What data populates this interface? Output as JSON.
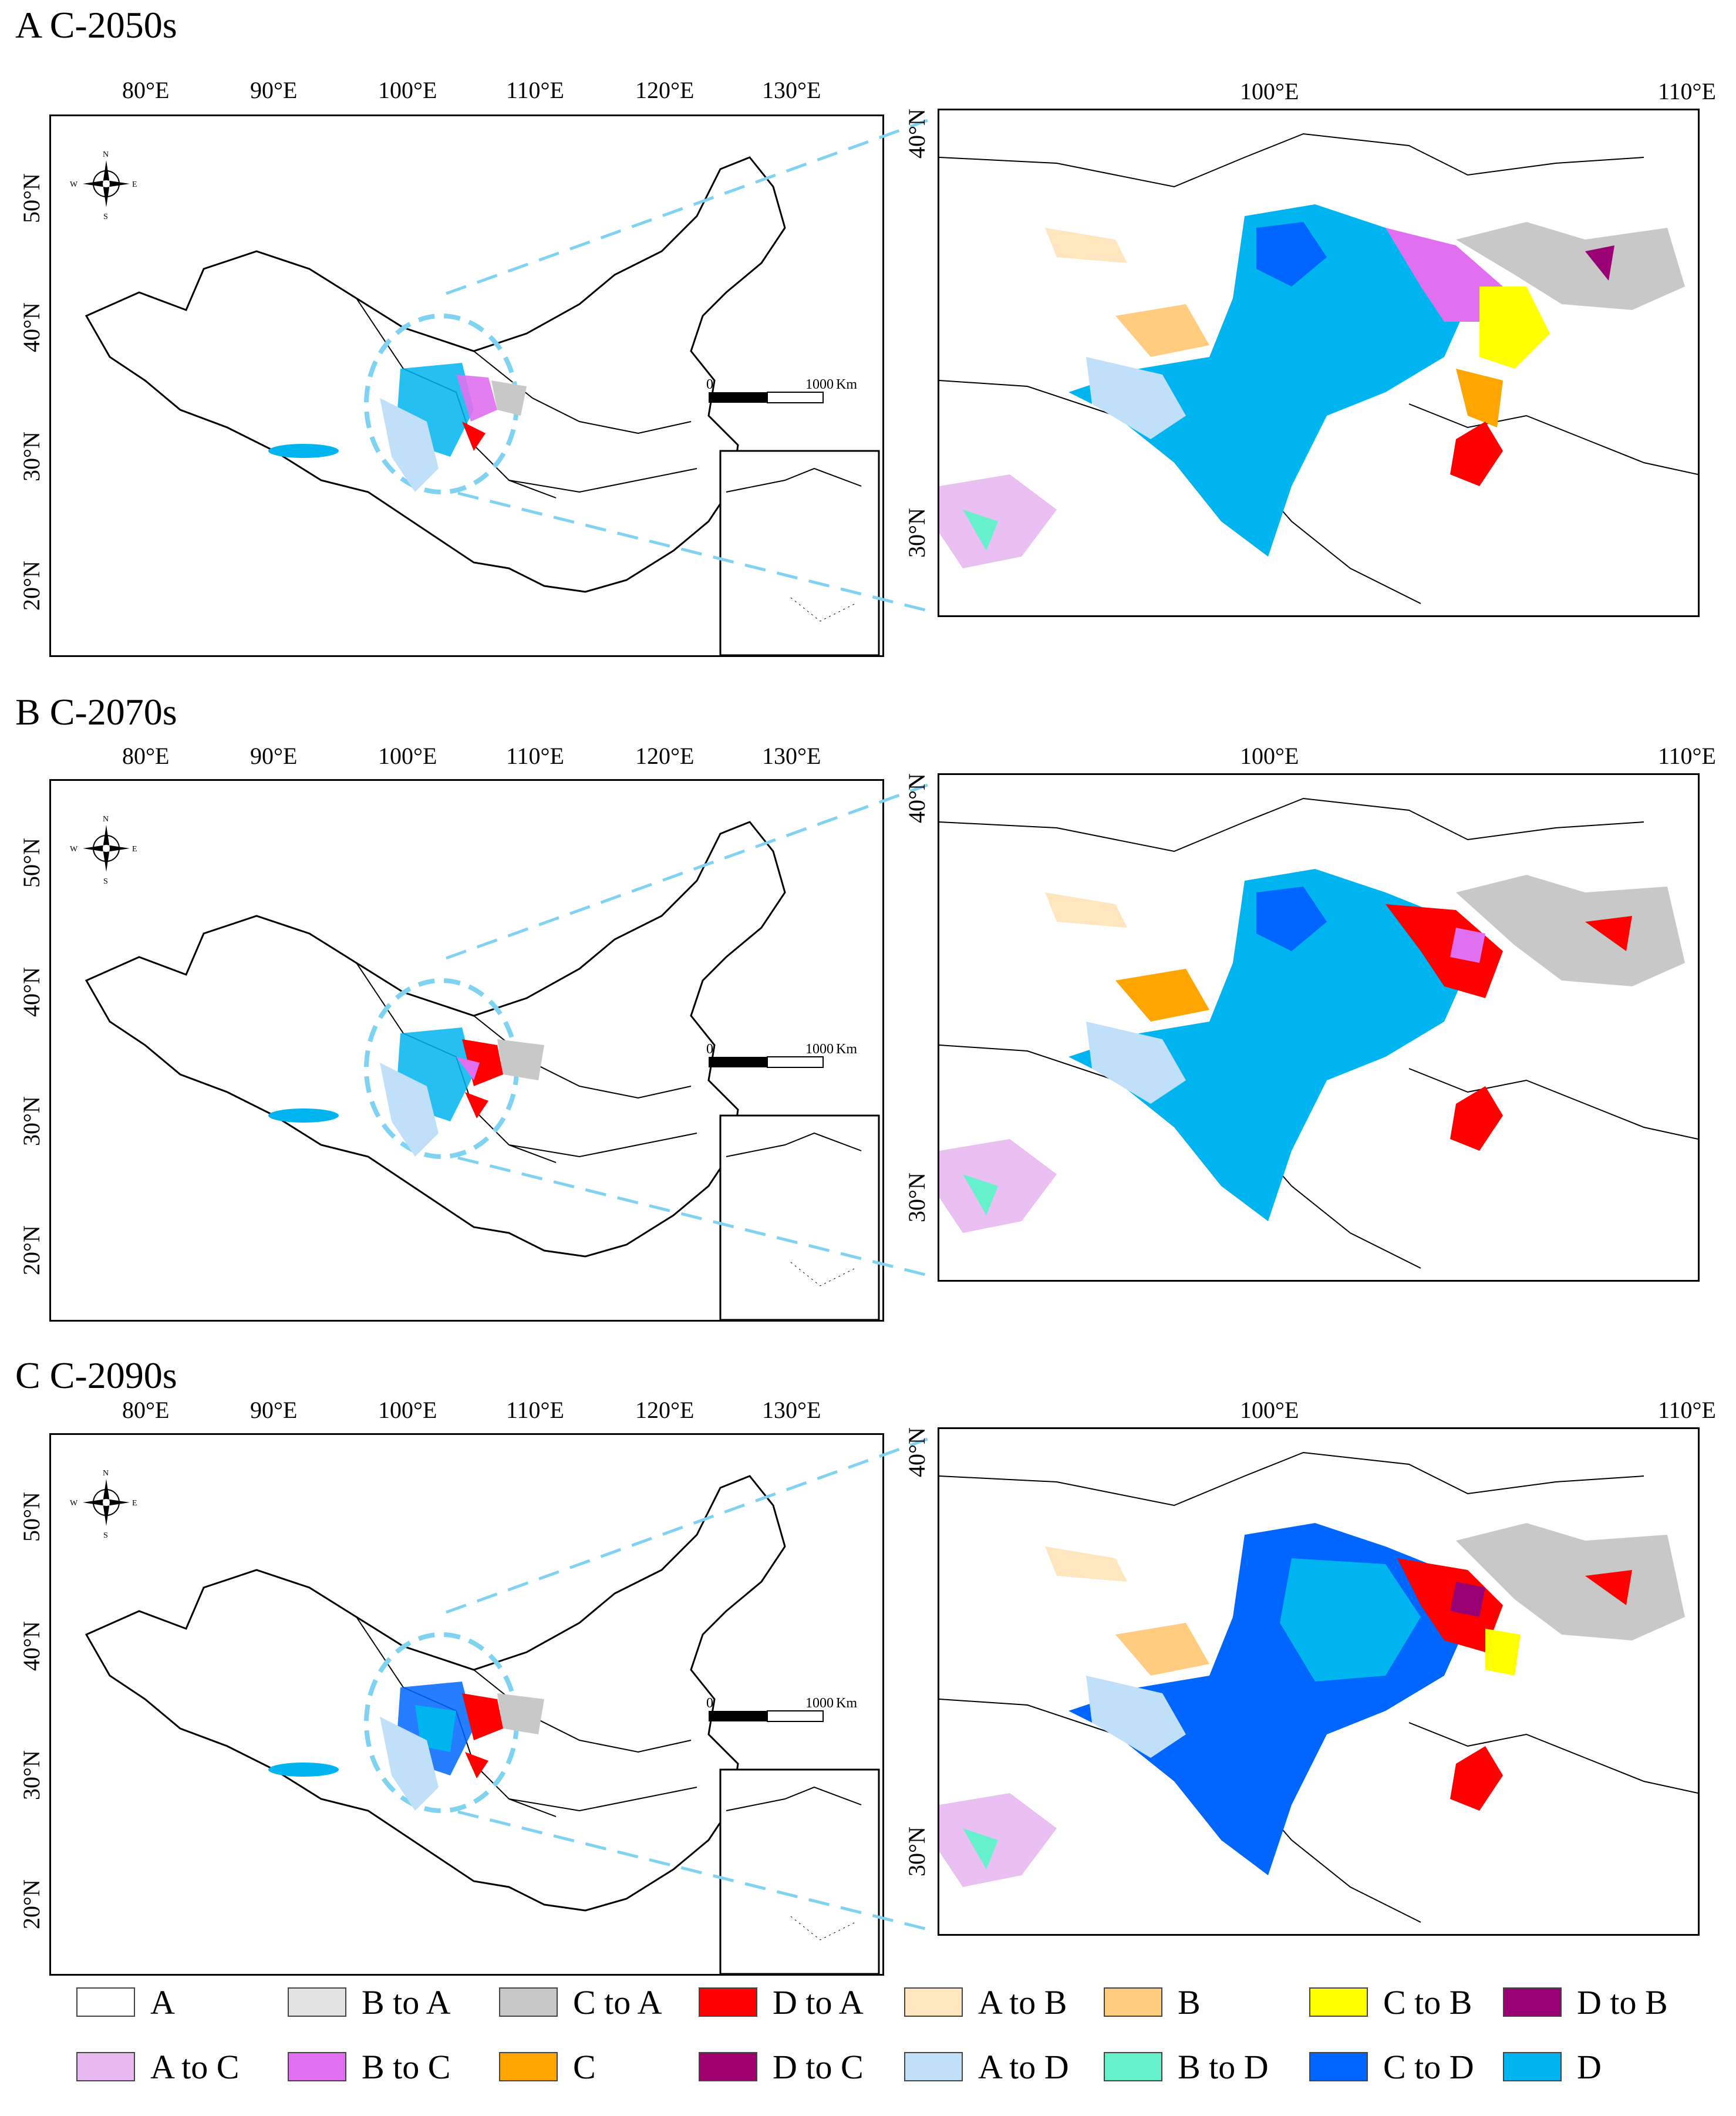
{
  "panels": [
    {
      "id": "A",
      "title": "A C-2050s"
    },
    {
      "id": "B",
      "title": "B C-2070s"
    },
    {
      "id": "C",
      "title": "C C-2090s"
    }
  ],
  "main_map": {
    "x_ticks": [
      "80°E",
      "90°E",
      "100°E",
      "110°E",
      "120°E",
      "130°E"
    ],
    "y_ticks": [
      "50°N",
      "40°N",
      "30°N",
      "20°N"
    ],
    "scale_bar": {
      "zero": "0",
      "distance": "1000",
      "unit": "Km"
    },
    "compass": {
      "n": "N",
      "s": "S",
      "e": "E",
      "w": "W"
    }
  },
  "zoom_map": {
    "x_ticks": [
      "100°E",
      "110°E"
    ],
    "y_ticks": [
      "40°N",
      "30°N"
    ]
  },
  "legend": [
    {
      "label": "A",
      "color": "#ffffff"
    },
    {
      "label": "B to A",
      "color": "#e3e3e3"
    },
    {
      "label": "C to A",
      "color": "#c8c8c8"
    },
    {
      "label": "D to A",
      "color": "#ff0000"
    },
    {
      "label": "A to B",
      "color": "#ffe6bf"
    },
    {
      "label": "B",
      "color": "#ffcc80"
    },
    {
      "label": "C to B",
      "color": "#ffff00"
    },
    {
      "label": "D to B",
      "color": "#990073"
    },
    {
      "label": "A to C",
      "color": "#e8b8f0"
    },
    {
      "label": "B to C",
      "color": "#e070f0"
    },
    {
      "label": "C",
      "color": "#ffa500"
    },
    {
      "label": "D to C",
      "color": "#a0006e"
    },
    {
      "label": "A to D",
      "color": "#bfe0f8"
    },
    {
      "label": "B to D",
      "color": "#66f0cc"
    },
    {
      "label": "C to D",
      "color": "#0066ff"
    },
    {
      "label": "D",
      "color": "#00b4f0"
    }
  ]
}
